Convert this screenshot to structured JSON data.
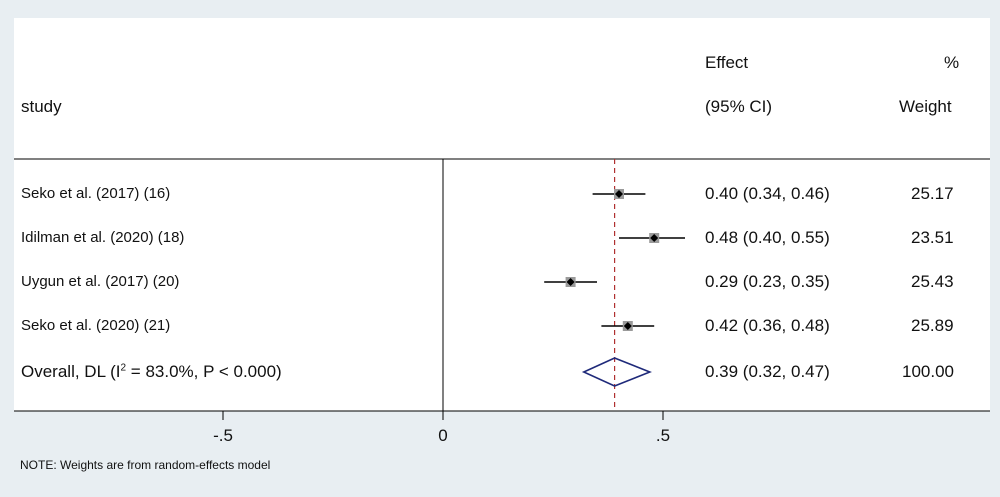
{
  "header": {
    "study_label": "study",
    "effect_label": "Effect",
    "ci_label": "(95% CI)",
    "pct_label": "%",
    "weight_label": "Weight"
  },
  "chart_data": {
    "type": "forest",
    "studies": [
      {
        "label": "Seko et al. (2017) (16)",
        "effect": 0.4,
        "lower": 0.34,
        "upper": 0.46,
        "ci_text": "0.40 (0.34, 0.46)",
        "weight": "25.17"
      },
      {
        "label": "Idilman et al.  (2020) (18)",
        "effect": 0.48,
        "lower": 0.4,
        "upper": 0.55,
        "ci_text": "0.48 (0.40, 0.55)",
        "weight": "23.51"
      },
      {
        "label": "Uygun et al. (2017) (20)",
        "effect": 0.29,
        "lower": 0.23,
        "upper": 0.35,
        "ci_text": "0.29 (0.23, 0.35)",
        "weight": "25.43"
      },
      {
        "label": "Seko et al. (2020) (21)",
        "effect": 0.42,
        "lower": 0.36,
        "upper": 0.48,
        "ci_text": "0.42 (0.36, 0.48)",
        "weight": "25.89"
      }
    ],
    "overall": {
      "label_prefix": "Overall, DL (I",
      "label_sup": "2",
      "label_suffix": " = 83.0%, P < 0.000)",
      "effect": 0.39,
      "lower": 0.32,
      "upper": 0.47,
      "ci_text": "0.39 (0.32, 0.47)",
      "weight": "100.00"
    },
    "x_ticks": [
      {
        "value": -0.5,
        "label": "-.5"
      },
      {
        "value": 0,
        "label": "0"
      },
      {
        "value": 0.5,
        "label": ".5"
      }
    ],
    "null_line": 0,
    "colors": {
      "marker": "#9a9a9a",
      "diamond": "#1f2a7a",
      "ref_line": "#b03030",
      "line": "#000000"
    }
  },
  "note": "NOTE: Weights are from random-effects model"
}
